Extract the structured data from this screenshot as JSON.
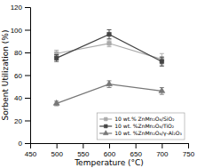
{
  "chart_data": {
    "type": "line",
    "x": [
      500,
      600,
      700
    ],
    "series": [
      {
        "name": "10 wt.% ZnMn₂O₄/SiO₂",
        "color": "#aaaaaa",
        "marker": "square",
        "line_style": "solid",
        "values": [
          79,
          88,
          74
        ],
        "yerr": [
          3,
          3,
          5
        ]
      },
      {
        "name": "10 wt. %ZnMn₂O₄/TiO₂",
        "color": "#444444",
        "marker": "square",
        "line_style": "solid",
        "values": [
          75,
          96,
          72
        ],
        "yerr": [
          3,
          4,
          4
        ]
      },
      {
        "name": "10 wt. %ZnMn₂O₄/γ-Al₂O₃",
        "color": "#777777",
        "marker": "triangle",
        "line_style": "solid",
        "values": [
          35,
          52,
          46
        ],
        "yerr": [
          2,
          3,
          3
        ]
      }
    ],
    "x_label": "Temperature (°C)",
    "y_label": "Sorbent Utilization (%)",
    "xlim": [
      450,
      750
    ],
    "ylim": [
      0,
      120
    ],
    "xticks": [
      450,
      500,
      550,
      600,
      650,
      700,
      750
    ],
    "yticks": [
      0,
      20,
      40,
      60,
      80,
      100,
      120
    ],
    "legend": "lower right"
  }
}
